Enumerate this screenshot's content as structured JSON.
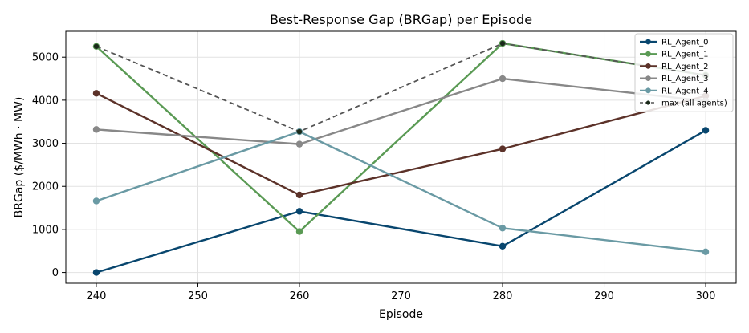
{
  "chart_data": {
    "type": "line",
    "title": "Best-Response Gap (BRGap) per Episode",
    "xlabel": "Episode",
    "ylabel": "BRGap ($/MWh · MW)",
    "x": [
      240,
      260,
      280,
      300
    ],
    "xlim": [
      237,
      303
    ],
    "ylim": [
      -250,
      5600
    ],
    "xticks": [
      240,
      250,
      260,
      270,
      280,
      290,
      300
    ],
    "yticks": [
      0,
      1000,
      2000,
      3000,
      4000,
      5000
    ],
    "grid": true,
    "legend_position": "top-right",
    "series": [
      {
        "name": "RL_Agent_0",
        "color": "#08466e",
        "style": "solid",
        "values": [
          0,
          1420,
          610,
          3300
        ]
      },
      {
        "name": "RL_Agent_1",
        "color": "#5a9a54",
        "style": "solid",
        "values": [
          5250,
          950,
          5320,
          4580
        ]
      },
      {
        "name": "RL_Agent_2",
        "color": "#5c3229",
        "style": "solid",
        "values": [
          4160,
          1800,
          2870,
          4100
        ]
      },
      {
        "name": "RL_Agent_3",
        "color": "#888888",
        "style": "solid",
        "values": [
          3320,
          2980,
          4500,
          3980
        ]
      },
      {
        "name": "RL_Agent_4",
        "color": "#6a9aa4",
        "style": "solid",
        "values": [
          1660,
          3270,
          1030,
          480
        ]
      },
      {
        "name": "max (all agents)",
        "color": "#555555",
        "style": "dashed",
        "marker_color": "#1a2a1a",
        "values": [
          5250,
          3270,
          5320,
          4580
        ]
      }
    ]
  }
}
